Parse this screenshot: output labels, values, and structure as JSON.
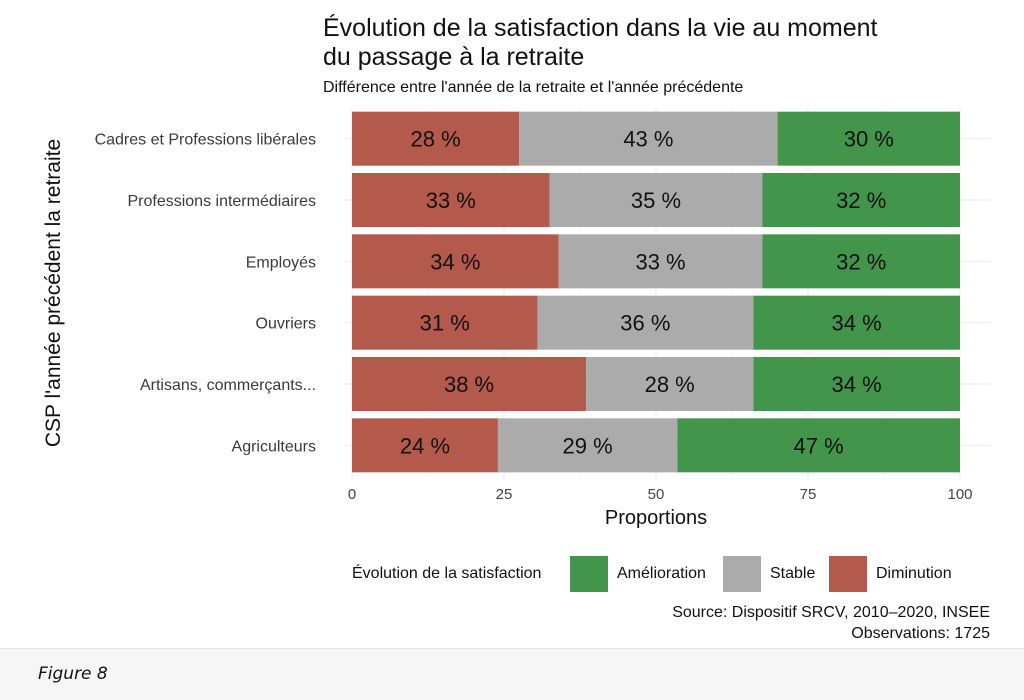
{
  "chart_data": {
    "type": "bar",
    "orientation": "horizontal",
    "stacked": true,
    "title_line1": "Évolution de la satisfaction dans la vie au moment",
    "title_line2": "du passage à la retraite",
    "subtitle": "Différence entre l'année de la retraite et l'année précédente",
    "xlabel": "Proportions",
    "ylabel": "CSP l'année précédent la retraite",
    "xlim": [
      0,
      100
    ],
    "xticks": [
      "0",
      "25",
      "50",
      "75",
      "100"
    ],
    "grid": true,
    "categories": [
      "Cadres et Professions libérales",
      "Professions intermédiaires",
      "Employés",
      "Ouvriers",
      "Artisans, commerçants...",
      "Agriculteurs"
    ],
    "series": [
      {
        "name": "Diminution",
        "color": "#b35a4d",
        "values": [
          27.5,
          32.5,
          34,
          30.5,
          38.5,
          24
        ],
        "labels": [
          "28 %",
          "33 %",
          "34 %",
          "31 %",
          "38 %",
          "24 %"
        ]
      },
      {
        "name": "Stable",
        "color": "#ababab",
        "values": [
          42.5,
          35,
          33.5,
          35.5,
          27.5,
          29.5
        ],
        "labels": [
          "43 %",
          "35 %",
          "33 %",
          "36 %",
          "28 %",
          "29 %"
        ]
      },
      {
        "name": "Amélioration",
        "color": "#43954b",
        "values": [
          30,
          32.5,
          32.5,
          34,
          34,
          46.5
        ],
        "labels": [
          "30 %",
          "32 %",
          "32 %",
          "34 %",
          "34 %",
          "47 %"
        ]
      }
    ],
    "legend_title": "Évolution de la satisfaction",
    "legend_order": [
      "Amélioration",
      "Stable",
      "Diminution"
    ],
    "legend_position": "bottom",
    "source_line1": "Source: Dispositif SRCV, 2010–2020, INSEE",
    "source_line2": "Observations: 1725"
  },
  "caption": "Figure 8"
}
